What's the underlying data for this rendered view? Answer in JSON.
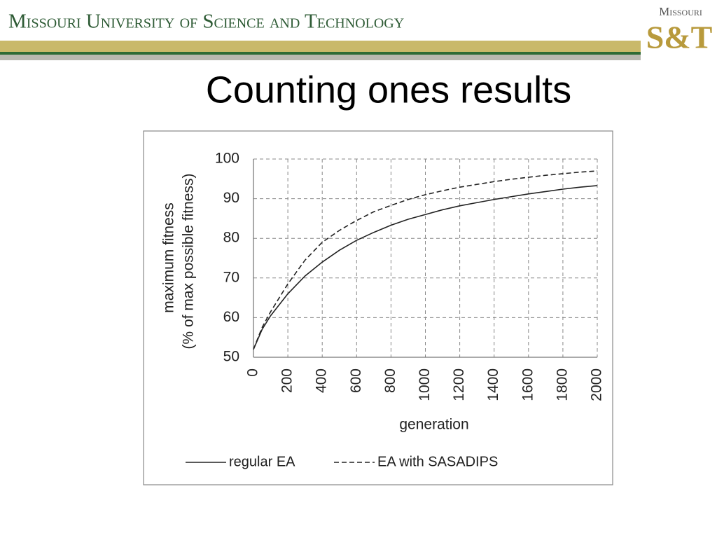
{
  "header": {
    "text": "Missouri University of Science and Technology",
    "logo_top": "Missouri",
    "logo_bottom": "S&T"
  },
  "chart_data": {
    "type": "line",
    "title": "Counting ones results",
    "xlabel": "generation",
    "ylabel": [
      "maximum fitness",
      "(% of max possible fitness)"
    ],
    "x": [
      0,
      50,
      100,
      200,
      300,
      400,
      500,
      600,
      700,
      800,
      900,
      1000,
      1100,
      1200,
      1300,
      1400,
      1500,
      1600,
      1700,
      1800,
      1900,
      2000
    ],
    "series": [
      {
        "name": "regular EA",
        "color": "#222222",
        "line_style": "solid",
        "values": [
          52,
          57,
          60.5,
          66,
          70.5,
          74,
          77,
          79.5,
          81.5,
          83.3,
          84.8,
          86,
          87.2,
          88.2,
          89,
          89.8,
          90.5,
          91.2,
          91.8,
          92.4,
          92.9,
          93.3
        ]
      },
      {
        "name": "EA with SASADIPS",
        "color": "#222222",
        "line_style": "dashed",
        "values": [
          52,
          57.5,
          61.5,
          68.5,
          74.5,
          79,
          82,
          84.5,
          86.7,
          88.3,
          89.8,
          91,
          92,
          92.9,
          93.6,
          94.3,
          94.9,
          95.4,
          95.9,
          96.3,
          96.7,
          97
        ]
      }
    ],
    "xlim": [
      0,
      2000
    ],
    "xticks": [
      0,
      200,
      400,
      600,
      800,
      1000,
      1200,
      1400,
      1600,
      1800,
      2000
    ],
    "ylim": [
      50,
      100
    ],
    "yticks": [
      50,
      60,
      70,
      80,
      90,
      100
    ],
    "grid": true,
    "legend": "bottom"
  }
}
